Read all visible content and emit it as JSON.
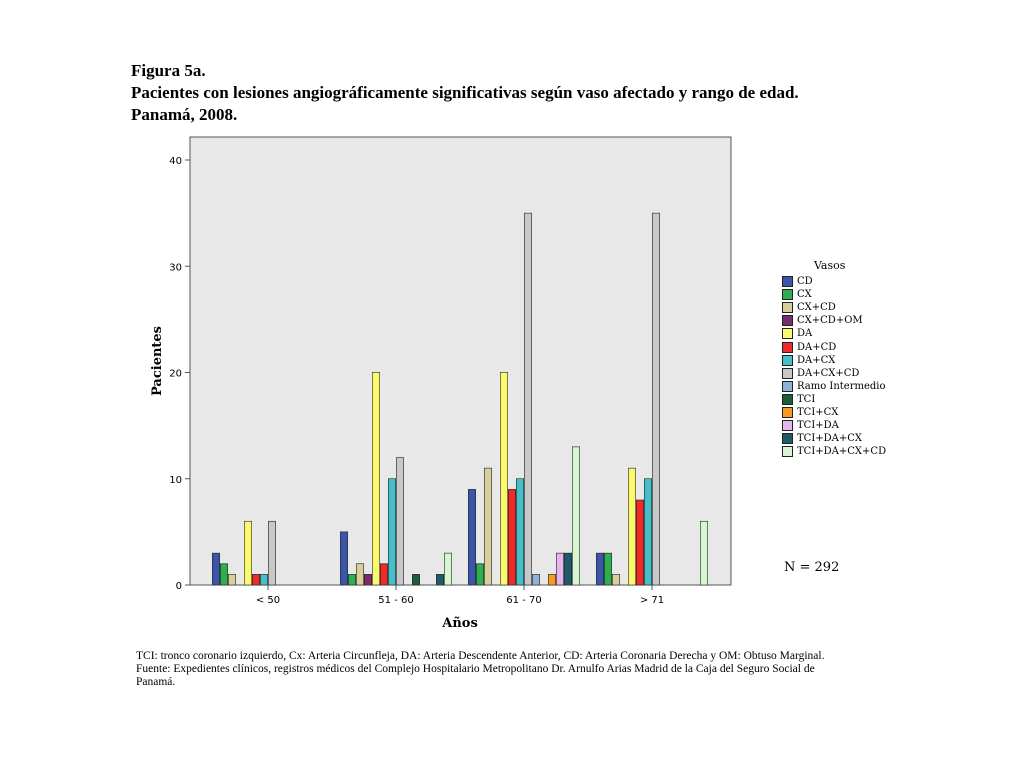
{
  "heading": {
    "figure_label": "Figura 5a.",
    "title_line1": "Pacientes con lesiones angiográficamente significativas según vaso afectado y rango de edad.",
    "title_line2": "Panamá, 2008."
  },
  "chart_data": {
    "type": "bar",
    "xlabel": "Años",
    "ylabel": "Pacientes",
    "ylim": [
      0,
      40
    ],
    "yticks": [
      0,
      10,
      20,
      30,
      40
    ],
    "categories": [
      "< 50",
      "51 - 60",
      "61 - 70",
      "> 71"
    ],
    "legend_title": "Vasos",
    "legend_position": "right",
    "grid": false,
    "background": "#e8e8e8",
    "series": [
      {
        "name": "CD",
        "color": "#3b56a8",
        "values": [
          3,
          5,
          9,
          3
        ]
      },
      {
        "name": "CX",
        "color": "#2eae4e",
        "values": [
          2,
          1,
          2,
          3
        ]
      },
      {
        "name": "CX+CD",
        "color": "#d8cf9c",
        "values": [
          1,
          2,
          11,
          1
        ]
      },
      {
        "name": "CX+CD+OM",
        "color": "#7a2b6e",
        "values": [
          0,
          1,
          0,
          0
        ]
      },
      {
        "name": "DA",
        "color": "#fafa6e",
        "values": [
          6,
          20,
          20,
          11
        ]
      },
      {
        "name": "DA+CD",
        "color": "#ee2a2a",
        "values": [
          1,
          2,
          9,
          8
        ]
      },
      {
        "name": "DA+CX",
        "color": "#46c0c8",
        "values": [
          1,
          10,
          10,
          10
        ]
      },
      {
        "name": "DA+CX+CD",
        "color": "#c8c8c8",
        "values": [
          6,
          12,
          35,
          35
        ]
      },
      {
        "name": "Ramo Intermedio",
        "color": "#8fb0d8",
        "values": [
          0,
          0,
          1,
          0
        ]
      },
      {
        "name": "TCI",
        "color": "#1d5e3a",
        "values": [
          0,
          1,
          0,
          0
        ]
      },
      {
        "name": "TCI+CX",
        "color": "#f79a22",
        "values": [
          0,
          0,
          1,
          0
        ]
      },
      {
        "name": "TCI+DA",
        "color": "#e6b5ec",
        "values": [
          0,
          0,
          3,
          0
        ]
      },
      {
        "name": "TCI+DA+CX",
        "color": "#1f5a6a",
        "values": [
          0,
          1,
          3,
          0
        ]
      },
      {
        "name": "TCI+DA+CX+CD",
        "color": "#d8f6d2",
        "values": [
          0,
          3,
          13,
          6
        ]
      }
    ]
  },
  "n_label": "N = 292",
  "notes": {
    "line1": "TCI: tronco coronario izquierdo, Cx: Arteria Circunfleja, DA: Arteria Descendente Anterior, CD: Arteria Coronaria Derecha y OM: Obtuso Marginal.",
    "line2": "Fuente: Expedientes clínicos, registros médicos del Complejo Hospitalario Metropolitano Dr. Arnulfo Arias Madrid de la Caja del Seguro Social de",
    "line3": "Panamá."
  }
}
